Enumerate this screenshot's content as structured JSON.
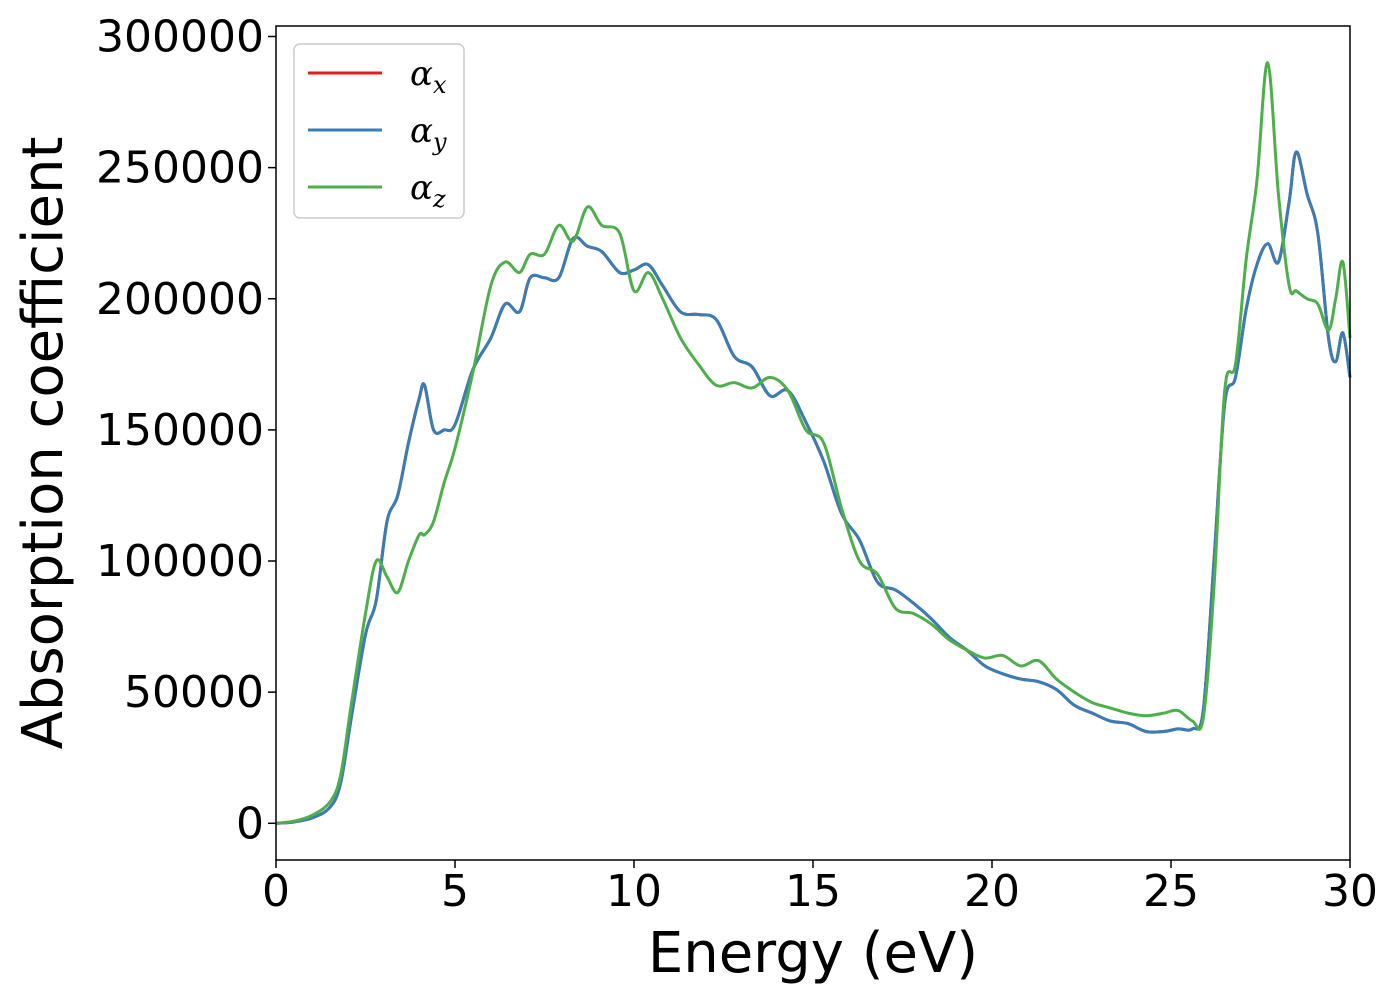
{
  "chart_data": {
    "type": "line",
    "title": "",
    "xlabel": "Energy (eV)",
    "ylabel": "Absorption coefficient",
    "xlim": [
      0,
      30
    ],
    "ylim": [
      -14000,
      304000
    ],
    "xticks": [
      0,
      5,
      10,
      15,
      20,
      25,
      30
    ],
    "yticks": [
      0,
      50000,
      100000,
      150000,
      200000,
      250000,
      300000
    ],
    "xtick_labels": [
      "0",
      "5",
      "10",
      "15",
      "20",
      "25",
      "30"
    ],
    "ytick_labels": [
      "0",
      "50000",
      "100000",
      "150000",
      "200000",
      "250000",
      "300000"
    ],
    "grid": false,
    "legend_position": "top-left",
    "x": [
      0,
      0.5,
      1,
      1.5,
      1.8,
      2.1,
      2.5,
      2.8,
      3.1,
      3.4,
      3.7,
      4.0,
      4.15,
      4.4,
      4.7,
      5.0,
      5.5,
      6.0,
      6.4,
      6.8,
      7.1,
      7.5,
      7.9,
      8.3,
      8.7,
      9.1,
      9.6,
      10.0,
      10.4,
      10.8,
      11.3,
      11.8,
      12.3,
      12.8,
      13.3,
      13.8,
      14.3,
      14.8,
      15.3,
      15.8,
      16.3,
      16.8,
      17.3,
      17.8,
      18.3,
      18.8,
      19.3,
      19.8,
      20.3,
      20.8,
      21.3,
      21.8,
      22.3,
      22.8,
      23.3,
      23.8,
      24.3,
      24.8,
      25.2,
      25.6,
      25.9,
      26.2,
      26.5,
      26.8,
      27.1,
      27.4,
      27.7,
      28.0,
      28.3,
      28.5,
      28.8,
      29.1,
      29.4,
      29.6,
      29.8,
      30.0
    ],
    "series": [
      {
        "name": "α_x",
        "legend_main": "α",
        "legend_sub": "x",
        "color": "#e41a1c",
        "values": [
          0,
          500,
          2000,
          6000,
          15000,
          40000,
          72000,
          85000,
          115000,
          125000,
          145000,
          162000,
          167000,
          150000,
          150000,
          152000,
          173000,
          185000,
          198000,
          195000,
          208000,
          208000,
          208000,
          223000,
          220000,
          218000,
          210000,
          211000,
          213000,
          205000,
          195000,
          194000,
          192000,
          178000,
          174000,
          163000,
          165000,
          153000,
          138000,
          118000,
          108000,
          92000,
          89000,
          84000,
          78000,
          71000,
          66000,
          60000,
          57000,
          55000,
          54000,
          51000,
          45000,
          42000,
          39000,
          38000,
          35000,
          35000,
          36000,
          36000,
          43000,
          100000,
          160000,
          170000,
          196000,
          213000,
          221000,
          214000,
          237000,
          256000,
          240000,
          225000,
          185000,
          176000,
          187000,
          170000
        ]
      },
      {
        "name": "α_y",
        "legend_main": "α",
        "legend_sub": "y",
        "color": "#377eb8",
        "values": [
          0,
          500,
          2000,
          6000,
          15000,
          40000,
          72000,
          85000,
          115000,
          125000,
          145000,
          162000,
          167000,
          150000,
          150000,
          152000,
          173000,
          185000,
          198000,
          195000,
          208000,
          208000,
          208000,
          223000,
          220000,
          218000,
          210000,
          211000,
          213000,
          205000,
          195000,
          194000,
          192000,
          178000,
          174000,
          163000,
          165000,
          153000,
          138000,
          118000,
          108000,
          92000,
          89000,
          84000,
          78000,
          71000,
          66000,
          60000,
          57000,
          55000,
          54000,
          51000,
          45000,
          42000,
          39000,
          38000,
          35000,
          35000,
          36000,
          36000,
          43000,
          100000,
          160000,
          170000,
          196000,
          213000,
          221000,
          214000,
          237000,
          256000,
          240000,
          225000,
          185000,
          176000,
          187000,
          170000
        ]
      },
      {
        "name": "α_z",
        "legend_main": "α",
        "legend_sub": "z",
        "color": "#4daf4a",
        "values": [
          0,
          800,
          3000,
          8000,
          18000,
          45000,
          80000,
          100000,
          94000,
          88000,
          100000,
          110000,
          110000,
          115000,
          130000,
          143000,
          172000,
          205000,
          214000,
          210000,
          217000,
          217000,
          228000,
          222000,
          235000,
          228000,
          225000,
          203000,
          210000,
          200000,
          185000,
          175000,
          167000,
          168000,
          166000,
          170000,
          165000,
          150000,
          145000,
          120000,
          100000,
          95000,
          82000,
          80000,
          76000,
          70000,
          66000,
          63000,
          64000,
          60000,
          62000,
          55000,
          50000,
          46000,
          44000,
          42000,
          41000,
          42000,
          43000,
          39000,
          40000,
          90000,
          165000,
          175000,
          215000,
          245000,
          290000,
          240000,
          205000,
          203000,
          200000,
          198000,
          188000,
          200000,
          214000,
          185000
        ]
      }
    ]
  }
}
